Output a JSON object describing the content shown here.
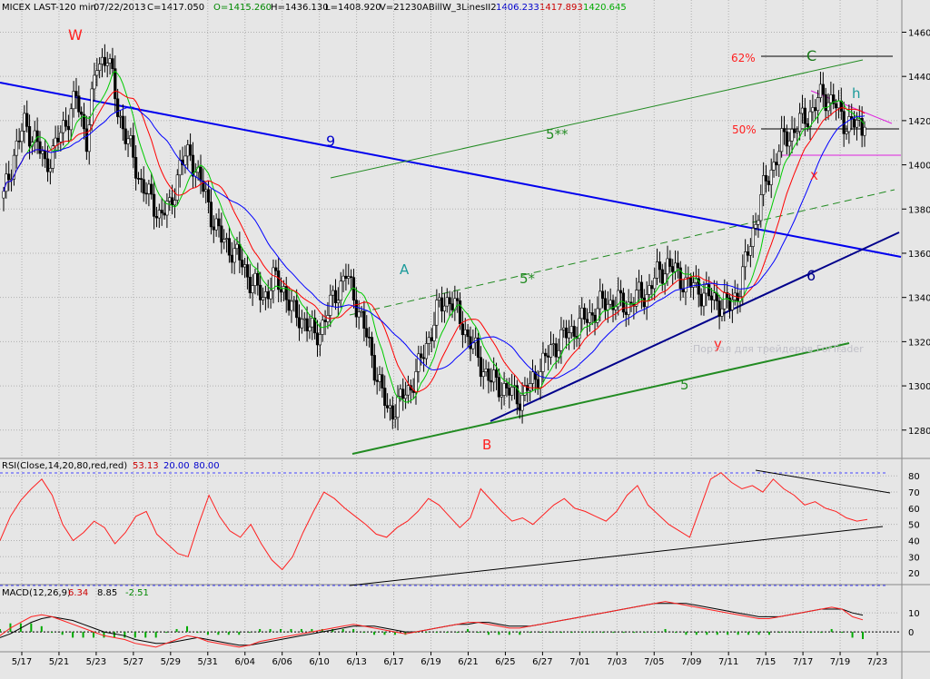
{
  "header": {
    "symbol": "MICEX LAST-120 min",
    "date": "07/22/2013",
    "close": "C=1417.050",
    "open": "O=1415.260",
    "high": "H=1436.130",
    "low": "L=1408.920",
    "volume": "V=21230",
    "indicator": "ABillW_3LinesII2",
    "ind_v1": "1406.233",
    "ind_v2": "1417.893",
    "ind_v3": "1420.645"
  },
  "rsi_header": {
    "label": "RSI(Close,14,20,80,red,red)",
    "v1": "53.13",
    "v2": "20.00",
    "v3": "80.00"
  },
  "macd_header": {
    "label": "MACD(12,26,9)",
    "v1": "6.34",
    "v2": "8.85",
    "v3": "-2.51"
  },
  "watermark": "Портал для трейдеров ForTrader",
  "colors": {
    "background": "#e6e6e6",
    "up_candle": "#ffffff",
    "down_candle": "#000000",
    "ma_fast": "#00cc00",
    "ma_mid": "#ff0000",
    "ma_slow": "#0000ff",
    "trend_blue": "#0000cc",
    "trend_green": "#228b22",
    "rsi_line": "#ff0000",
    "macd_line": "#ff0000",
    "signal_line": "#000000",
    "hist": "#00aa00"
  },
  "chart_data": [
    {
      "type": "candlestick",
      "ylim": [
        1268,
        1468
      ],
      "y_ticks": [
        1280,
        1300,
        1320,
        1340,
        1360,
        1380,
        1400,
        1420,
        1440,
        1460
      ],
      "x_ticks": [
        "5/17",
        "5/21",
        "5/23",
        "5/27",
        "5/29",
        "5/31",
        "6/04",
        "6/06",
        "6/10",
        "6/13",
        "6/17",
        "6/19",
        "6/21",
        "6/25",
        "6/27",
        "7/01",
        "7/03",
        "7/05",
        "7/09",
        "7/11",
        "7/15",
        "7/17",
        "7/19",
        "7/23"
      ],
      "grid": true,
      "close_series": [
        1385,
        1405,
        1418,
        1412,
        1400,
        1408,
        1420,
        1430,
        1412,
        1445,
        1450,
        1425,
        1410,
        1395,
        1385,
        1378,
        1380,
        1400,
        1405,
        1392,
        1378,
        1366,
        1362,
        1355,
        1346,
        1340,
        1348,
        1344,
        1332,
        1330,
        1322,
        1330,
        1342,
        1350,
        1338,
        1322,
        1305,
        1288,
        1292,
        1298,
        1308,
        1322,
        1336,
        1340,
        1330,
        1320,
        1310,
        1302,
        1300,
        1296,
        1295,
        1302,
        1310,
        1318,
        1322,
        1326,
        1330,
        1334,
        1338,
        1338,
        1336,
        1340,
        1342,
        1350,
        1355,
        1350,
        1346,
        1344,
        1340,
        1338,
        1336,
        1345,
        1365,
        1385,
        1398,
        1410,
        1415,
        1420,
        1425,
        1432,
        1428,
        1420,
        1418,
        1417
      ],
      "annotations": [
        {
          "text": "W",
          "color": "#ff2020"
        },
        {
          "text": "A",
          "color": "#1a9a9a"
        },
        {
          "text": "B",
          "color": "#ff2020"
        },
        {
          "text": "C",
          "color": "#1a7a1a"
        },
        {
          "text": "h",
          "color": "#1a9a9a"
        },
        {
          "text": "x",
          "color": "#ff2020"
        },
        {
          "text": "y",
          "color": "#ff2020"
        },
        {
          "text": "9",
          "color": "#0000cc"
        },
        {
          "text": "6",
          "color": "#00008b"
        },
        {
          "text": "5",
          "color": "#228b22"
        },
        {
          "text": "5*",
          "color": "#228b22"
        },
        {
          "text": "5**",
          "color": "#228b22"
        },
        {
          "text": "62%",
          "color": "#ff2020"
        },
        {
          "text": "50%",
          "color": "#ff2020"
        }
      ]
    },
    {
      "type": "line",
      "name": "RSI",
      "ylim": [
        15,
        88
      ],
      "y_ticks": [
        20,
        30,
        40,
        50,
        60,
        70,
        80
      ],
      "levels": [
        20,
        80
      ],
      "values": [
        40,
        55,
        65,
        72,
        78,
        68,
        50,
        40,
        45,
        52,
        48,
        38,
        45,
        55,
        58,
        44,
        38,
        32,
        30,
        50,
        68,
        55,
        46,
        42,
        50,
        38,
        28,
        22,
        30,
        45,
        58,
        70,
        66,
        60,
        55,
        50,
        44,
        42,
        48,
        52,
        58,
        66,
        62,
        55,
        48,
        54,
        72,
        65,
        58,
        52,
        54,
        50,
        56,
        62,
        66,
        60,
        58,
        55,
        52,
        58,
        68,
        74,
        62,
        56,
        50,
        46,
        42,
        60,
        78,
        82,
        76,
        72,
        74,
        70,
        78,
        72,
        68,
        62,
        64,
        60,
        58,
        54,
        52,
        53
      ]
    },
    {
      "type": "line",
      "name": "MACD",
      "ylim": [
        -9,
        22
      ],
      "y_ticks": [
        10,
        0
      ],
      "macd": [
        -2,
        2,
        5,
        8,
        9,
        8,
        6,
        4,
        2,
        0,
        -2,
        -3,
        -4,
        -6,
        -7,
        -8,
        -6,
        -4,
        -2,
        -3,
        -5,
        -6,
        -7,
        -8,
        -7,
        -5,
        -4,
        -3,
        -2,
        -1,
        0,
        1,
        2,
        3,
        4,
        3,
        2,
        1,
        0,
        -1,
        0,
        1,
        2,
        3,
        4,
        5,
        5,
        4,
        3,
        2,
        2,
        3,
        4,
        5,
        6,
        7,
        8,
        9,
        10,
        11,
        12,
        13,
        14,
        15,
        16,
        15,
        14,
        13,
        12,
        11,
        10,
        9,
        8,
        7,
        7,
        8,
        9,
        10,
        11,
        12,
        13,
        12,
        8,
        6.34
      ],
      "signal": [
        -3,
        -1,
        2,
        5,
        7,
        8,
        7,
        6,
        4,
        2,
        0,
        -1,
        -2,
        -4,
        -5,
        -6,
        -6,
        -5,
        -4,
        -3,
        -4,
        -5,
        -6,
        -7,
        -7,
        -6,
        -5,
        -4,
        -3,
        -2,
        -1,
        0,
        1,
        2,
        3,
        3,
        3,
        2,
        1,
        0,
        0,
        1,
        2,
        3,
        4,
        4,
        5,
        5,
        4,
        3,
        3,
        3,
        4,
        5,
        6,
        7,
        8,
        9,
        10,
        11,
        12,
        13,
        14,
        15,
        15,
        15,
        15,
        14,
        13,
        12,
        11,
        10,
        9,
        8,
        8,
        8,
        9,
        10,
        11,
        12,
        12,
        12,
        10,
        8.85
      ]
    }
  ]
}
